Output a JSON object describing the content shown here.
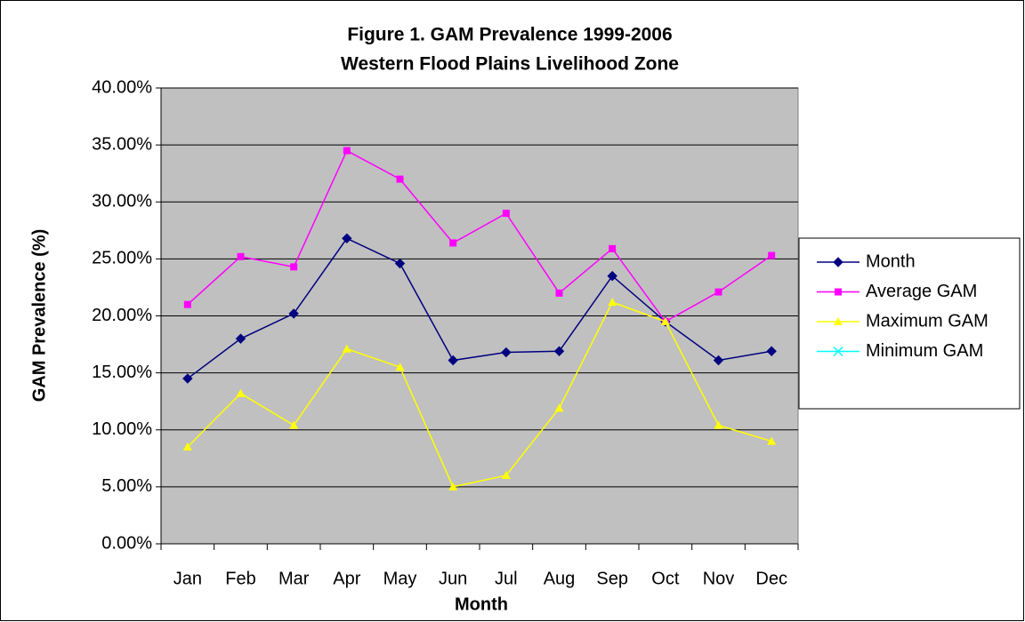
{
  "chart_data": {
    "type": "line",
    "title": [
      "Figure 1. GAM Prevalence 1999-2006",
      "Western Flood Plains Livelihood Zone"
    ],
    "x_label": "Month",
    "y_label": "GAM Prevalence (%)",
    "categories": [
      "Jan",
      "Feb",
      "Mar",
      "Apr",
      "May",
      "Jun",
      "Jul",
      "Aug",
      "Sep",
      "Oct",
      "Nov",
      "Dec"
    ],
    "series": [
      {
        "name": "Month",
        "color": "#000080",
        "marker": "diamond",
        "values": [
          14.5,
          18.0,
          20.2,
          26.8,
          24.6,
          16.1,
          16.8,
          16.9,
          23.5,
          19.5,
          16.1,
          16.9
        ]
      },
      {
        "name": "Average GAM",
        "color": "#ff00ff",
        "marker": "square",
        "values": [
          21.0,
          25.2,
          24.3,
          34.5,
          32.0,
          26.4,
          29.0,
          22.0,
          25.9,
          19.5,
          22.1,
          25.3
        ]
      },
      {
        "name": "Maximum GAM",
        "color": "#ffff00",
        "marker": "triangle",
        "values": [
          8.5,
          13.2,
          10.4,
          17.1,
          15.5,
          5.0,
          6.0,
          11.9,
          21.2,
          19.5,
          10.4,
          9.0
        ]
      },
      {
        "name": "Minimum GAM",
        "color": "#00ffff",
        "marker": "x",
        "values": [
          null,
          null,
          null,
          null,
          null,
          null,
          null,
          null,
          null,
          null,
          null,
          null
        ]
      }
    ],
    "ylim": [
      0,
      40
    ],
    "yticks": [
      {
        "value": 0,
        "label": "0.00%"
      },
      {
        "value": 5,
        "label": "5.00%"
      },
      {
        "value": 10,
        "label": "10.00%"
      },
      {
        "value": 15,
        "label": "15.00%"
      },
      {
        "value": 20,
        "label": "20.00%"
      },
      {
        "value": 25,
        "label": "25.00%"
      },
      {
        "value": 30,
        "label": "30.00%"
      },
      {
        "value": 35,
        "label": "35.00%"
      },
      {
        "value": 40,
        "label": "40.00%"
      }
    ],
    "grid": true,
    "legend": "right",
    "plot_background": "#c0c0c0"
  }
}
